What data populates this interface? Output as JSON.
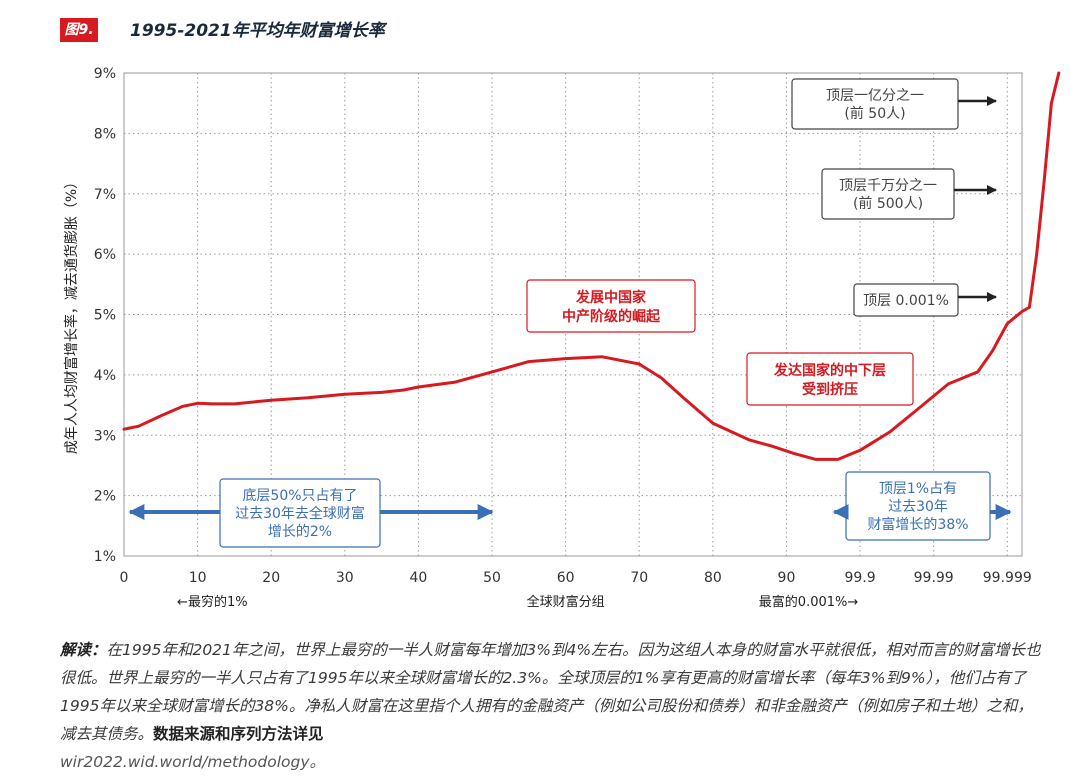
{
  "figure": {
    "badge": "图9.",
    "title": "1995-2021年平均年财富增长率"
  },
  "chart_data": {
    "type": "line",
    "title": "1995-2021年平均年财富增长率",
    "ylabel": "成年人人均财富增长率，减去通货膨胀（%）",
    "xlabel": "全球财富分组",
    "x_left_note": "←最穷的1%",
    "x_right_note": "最富的0.001%→",
    "ylim": [
      1,
      9
    ],
    "y_ticks": [
      "1%",
      "2%",
      "3%",
      "4%",
      "5%",
      "6%",
      "7%",
      "8%",
      "9%"
    ],
    "x_tick_labels": [
      "0",
      "10",
      "20",
      "30",
      "40",
      "50",
      "60",
      "70",
      "80",
      "90",
      "99.9",
      "99.99",
      "99.999"
    ],
    "grid": true,
    "line_color": "#d71920",
    "series": [
      {
        "points": [
          [
            0,
            3.1
          ],
          [
            2,
            3.15
          ],
          [
            5,
            3.32
          ],
          [
            8,
            3.48
          ],
          [
            10,
            3.53
          ],
          [
            12,
            3.52
          ],
          [
            15,
            3.52
          ],
          [
            20,
            3.58
          ],
          [
            25,
            3.62
          ],
          [
            30,
            3.68
          ],
          [
            35,
            3.71
          ],
          [
            38,
            3.75
          ],
          [
            40,
            3.8
          ],
          [
            45,
            3.88
          ],
          [
            50,
            4.05
          ],
          [
            55,
            4.22
          ],
          [
            60,
            4.27
          ],
          [
            65,
            4.3
          ],
          [
            70,
            4.18
          ],
          [
            73,
            3.95
          ],
          [
            76,
            3.62
          ],
          [
            80,
            3.2
          ],
          [
            85,
            2.92
          ],
          [
            88,
            2.82
          ],
          [
            91,
            2.7
          ],
          [
            94,
            2.6
          ],
          [
            97,
            2.6
          ],
          [
            100,
            2.75
          ],
          [
            104,
            3.05
          ],
          [
            108,
            3.45
          ],
          [
            112,
            3.85
          ],
          [
            116,
            4.05
          ],
          [
            118,
            4.4
          ],
          [
            120,
            4.85
          ],
          [
            122,
            5.05
          ],
          [
            123,
            5.12
          ],
          [
            124,
            6.0
          ],
          [
            125,
            7.2
          ],
          [
            126,
            8.5
          ],
          [
            127,
            9.0
          ]
        ]
      }
    ],
    "annotations": [
      {
        "id": "middle_class",
        "lines": [
          "发展中国家",
          "中产阶级的崛起"
        ],
        "color": "#d71920"
      },
      {
        "id": "squeezed",
        "lines": [
          "发达国家的中下层",
          "受到挤压"
        ],
        "color": "#d71920"
      },
      {
        "id": "bottom50",
        "lines": [
          "底层50%只占有了",
          "过去30年去全球财富",
          "增长的2%"
        ],
        "color": "#3b6fb6"
      },
      {
        "id": "top1",
        "lines": [
          "顶层1%占有",
          "过去30年",
          "财富增长的38%"
        ],
        "color": "#3b6fb6"
      },
      {
        "id": "top_1e8",
        "lines": [
          "顶层一亿分之一",
          "(前 50人)"
        ],
        "color": "#444444"
      },
      {
        "id": "top_1e7",
        "lines": [
          "顶层千万分之一",
          "(前 500人)"
        ],
        "color": "#444444"
      },
      {
        "id": "top_0001",
        "lines": [
          "顶层 0.001%"
        ],
        "color": "#444444"
      }
    ]
  },
  "caption": {
    "lead": "解读：",
    "body": "在1995年和2021年之间，世界上最穷的一半人财富每年增加3%到4%左右。因为这组人本身的财富水平就很低，相对而言的财富增长也很低。世界上最穷的一半人只占有了1995年以来全球财富增长的2.3%。全球顶层的1%享有更高的财富增长率（每年3%到9%），他们占有了1995年以来全球财富增长的38%。净私人财富在这里指个人拥有的金融资产（例如公司股份和债券）和非金融资产（例如房子和土地）之和，减去其债务。",
    "tail": "数据来源和序列方法详见",
    "link": "wir2022.wid.world/methodology。"
  }
}
